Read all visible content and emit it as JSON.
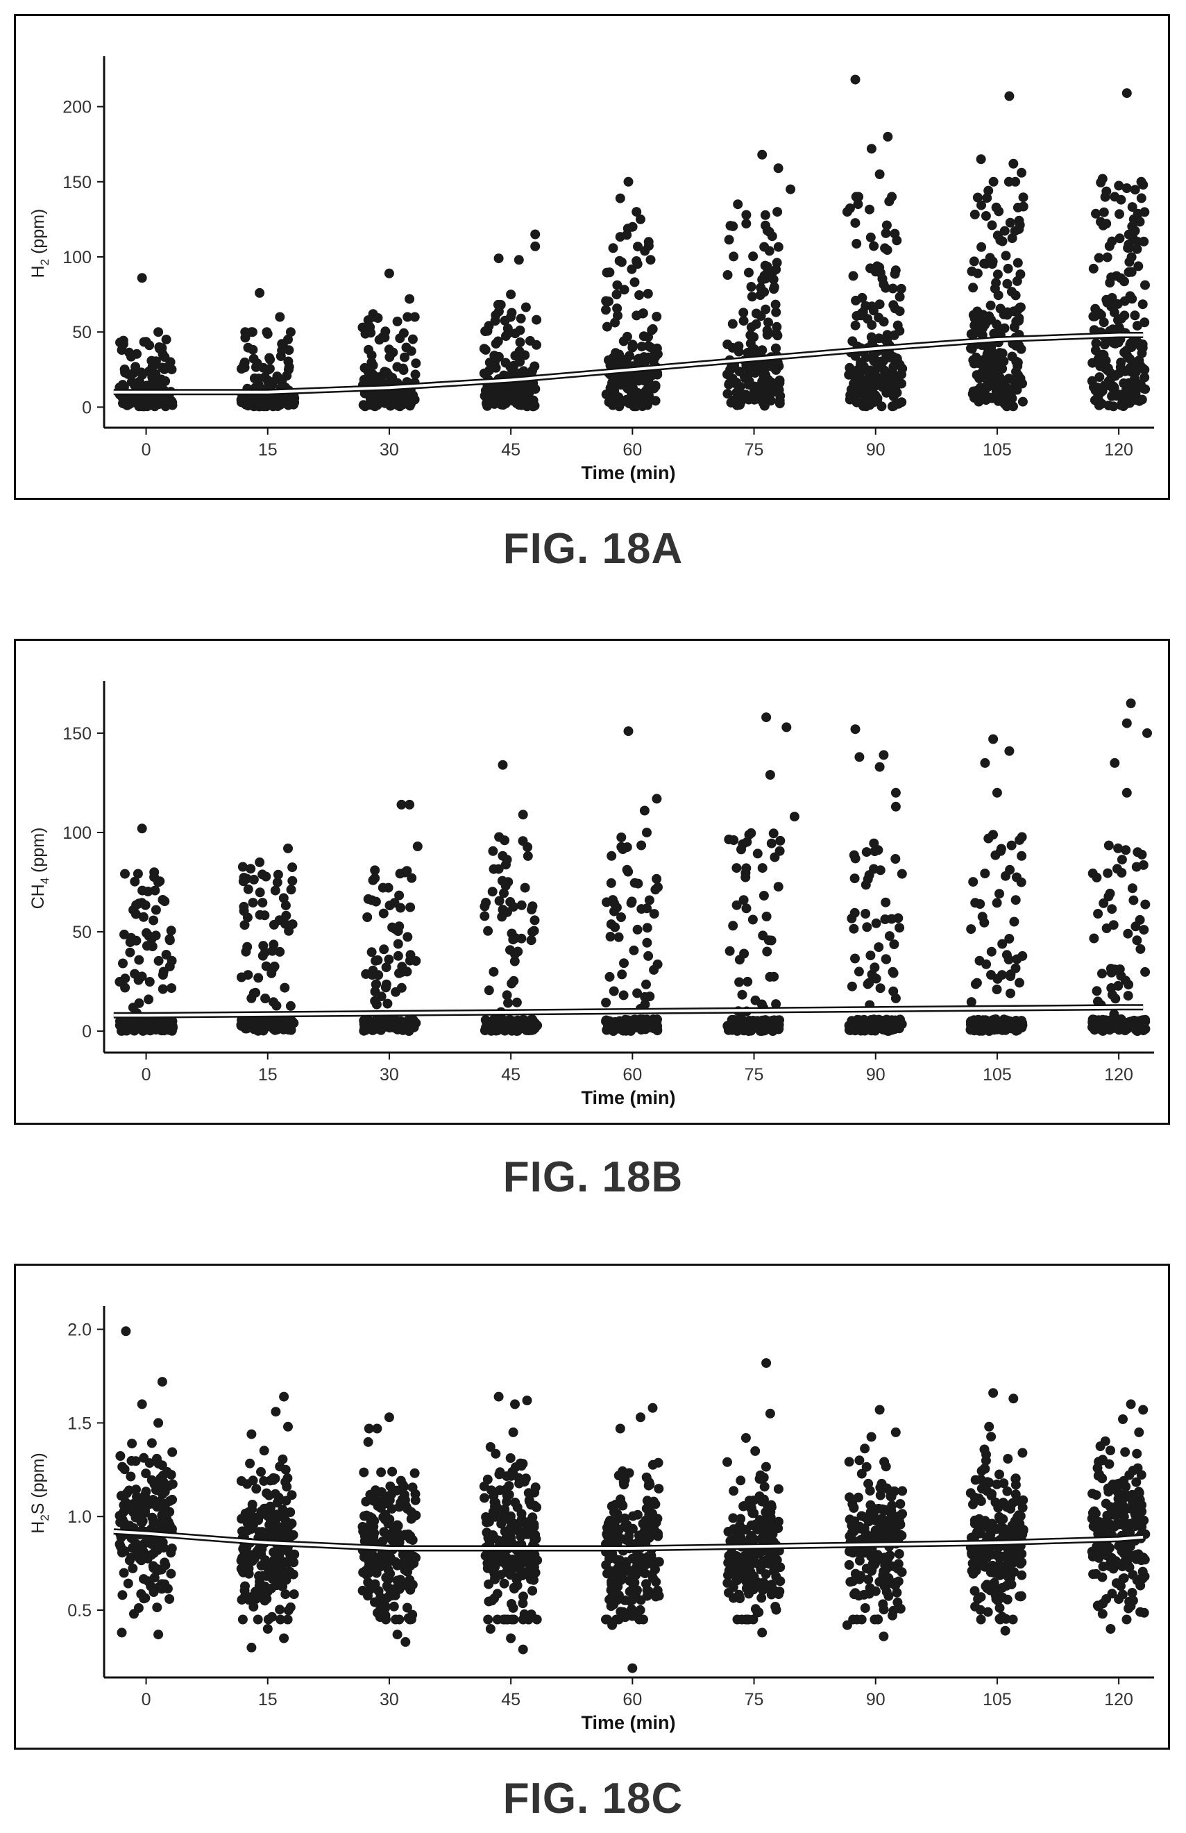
{
  "chart_data": [
    {
      "type": "scatter",
      "figure_label": "FIG. 18A",
      "title": "",
      "xlabel": "Time (min)",
      "ylabel_main": "H",
      "ylabel_sub": "2",
      "ylabel_rest": " (ppm)",
      "x_ticks": [
        0,
        15,
        30,
        45,
        60,
        75,
        90,
        105,
        120
      ],
      "y_ticks": [
        0,
        50,
        100,
        150,
        200
      ],
      "xlim": [
        -4.5,
        123.5
      ],
      "ylim": [
        -10,
        228
      ],
      "grid": false,
      "legend": "none",
      "point_color": "#1a1a1a",
      "trend": {
        "x": [
          -4,
          0,
          15,
          30,
          45,
          60,
          75,
          90,
          105,
          120,
          123
        ],
        "y": [
          10,
          10,
          10,
          13,
          18,
          25,
          32,
          39,
          45,
          48,
          48
        ]
      },
      "groups": [
        {
          "x": 0,
          "median": 10,
          "spread": 9,
          "n": 150,
          "max": 45,
          "outliers": [
            [
              -2.8,
              42
            ],
            [
              1.5,
              50
            ],
            [
              -0.5,
              86
            ],
            [
              3,
              30
            ],
            [
              -3,
              38
            ]
          ]
        },
        {
          "x": 15,
          "median": 12,
          "spread": 9,
          "n": 150,
          "max": 50,
          "outliers": [
            [
              14,
              76
            ],
            [
              16.5,
              60
            ],
            [
              13,
              50
            ],
            [
              17.5,
              45
            ]
          ]
        },
        {
          "x": 30,
          "median": 16,
          "spread": 12,
          "n": 150,
          "max": 60,
          "outliers": [
            [
              30,
              89
            ],
            [
              28,
              62
            ],
            [
              32.5,
              72
            ],
            [
              31,
              57
            ]
          ]
        },
        {
          "x": 45,
          "median": 20,
          "spread": 15,
          "n": 150,
          "max": 75,
          "outliers": [
            [
              43.5,
              99
            ],
            [
              46,
              98
            ],
            [
              48,
              115
            ],
            [
              48,
              107
            ],
            [
              45,
              75
            ]
          ]
        },
        {
          "x": 60,
          "median": 32,
          "spread": 30,
          "n": 170,
          "max": 120,
          "outliers": [
            [
              59.5,
              150
            ],
            [
              58.5,
              139
            ],
            [
              61,
              125
            ],
            [
              62,
              110
            ],
            [
              60.5,
              130
            ]
          ]
        },
        {
          "x": 75,
          "median": 38,
          "spread": 32,
          "n": 180,
          "max": 130,
          "outliers": [
            [
              76,
              168
            ],
            [
              78,
              159
            ],
            [
              79.5,
              145
            ],
            [
              73,
              135
            ]
          ]
        },
        {
          "x": 90,
          "median": 40,
          "spread": 35,
          "n": 190,
          "max": 140,
          "outliers": [
            [
              87.5,
              218
            ],
            [
              89.5,
              172
            ],
            [
              91.5,
              180
            ],
            [
              90.5,
              155
            ],
            [
              86.5,
              130
            ]
          ]
        },
        {
          "x": 105,
          "median": 50,
          "spread": 40,
          "n": 200,
          "max": 150,
          "outliers": [
            [
              106.5,
              207
            ],
            [
              103,
              165
            ],
            [
              108,
              156
            ],
            [
              107,
              162
            ]
          ]
        },
        {
          "x": 120,
          "median": 52,
          "spread": 40,
          "n": 200,
          "max": 150,
          "outliers": [
            [
              121,
              209
            ],
            [
              118,
              152
            ],
            [
              123,
              148
            ],
            [
              119.5,
              140
            ]
          ]
        }
      ]
    },
    {
      "type": "scatter",
      "figure_label": "FIG. 18B",
      "title": "",
      "xlabel": "Time (min)",
      "ylabel_main": "CH",
      "ylabel_sub": "4",
      "ylabel_rest": " (ppm)",
      "x_ticks": [
        0,
        15,
        30,
        45,
        60,
        75,
        90,
        105,
        120
      ],
      "y_ticks": [
        0,
        50,
        100,
        150
      ],
      "xlim": [
        -4.5,
        123.5
      ],
      "ylim": [
        -8,
        172
      ],
      "grid": false,
      "legend": "none",
      "point_color": "#1a1a1a",
      "trend": {
        "x": [
          -4,
          0,
          30,
          60,
          90,
          120,
          123
        ],
        "y": [
          8,
          8,
          9,
          10,
          11,
          12,
          12
        ]
      },
      "groups": [
        {
          "x": 0,
          "n_low": 120,
          "n_high": 55,
          "high_max": 80,
          "outliers": [
            [
              -0.5,
              102
            ],
            [
              1,
              80
            ]
          ]
        },
        {
          "x": 15,
          "n_low": 110,
          "n_high": 55,
          "high_max": 86,
          "outliers": [
            [
              17.5,
              92
            ],
            [
              14,
              85
            ]
          ]
        },
        {
          "x": 30,
          "n_low": 110,
          "n_high": 55,
          "high_max": 82,
          "outliers": [
            [
              31.5,
              114
            ],
            [
              32.5,
              114
            ],
            [
              33.5,
              93
            ]
          ]
        },
        {
          "x": 45,
          "n_low": 110,
          "n_high": 50,
          "high_max": 98,
          "outliers": [
            [
              44,
              134
            ],
            [
              46.5,
              109
            ]
          ]
        },
        {
          "x": 60,
          "n_low": 110,
          "n_high": 50,
          "high_max": 100,
          "outliers": [
            [
              59.5,
              151
            ],
            [
              63,
              117
            ],
            [
              61.5,
              111
            ]
          ]
        },
        {
          "x": 75,
          "n_low": 110,
          "n_high": 45,
          "high_max": 100,
          "outliers": [
            [
              76.5,
              158
            ],
            [
              79,
              153
            ],
            [
              77,
              129
            ],
            [
              80,
              108
            ]
          ]
        },
        {
          "x": 90,
          "n_low": 110,
          "n_high": 45,
          "high_max": 95,
          "outliers": [
            [
              87.5,
              152
            ],
            [
              88,
              138
            ],
            [
              90.5,
              133
            ],
            [
              91,
              139
            ],
            [
              92.5,
              120
            ],
            [
              92.5,
              113
            ]
          ]
        },
        {
          "x": 105,
          "n_low": 110,
          "n_high": 45,
          "high_max": 100,
          "outliers": [
            [
              104.5,
              147
            ],
            [
              106.5,
              141
            ],
            [
              103.5,
              135
            ],
            [
              105,
              120
            ]
          ]
        },
        {
          "x": 120,
          "n_low": 110,
          "n_high": 50,
          "high_max": 95,
          "outliers": [
            [
              121.5,
              165
            ],
            [
              121,
              155
            ],
            [
              123.5,
              150
            ],
            [
              119.5,
              135
            ],
            [
              121,
              120
            ]
          ]
        }
      ]
    },
    {
      "type": "scatter",
      "figure_label": "FIG. 18C",
      "title": "",
      "xlabel": "Time (min)",
      "ylabel_main": "H",
      "ylabel_sub": "2",
      "ylabel_rest": "S (ppm)",
      "x_ticks": [
        0,
        15,
        30,
        45,
        60,
        75,
        90,
        105,
        120
      ],
      "y_ticks": [
        0.5,
        1.0,
        1.5,
        2.0
      ],
      "y_tick_labels": [
        "0.5",
        "1.0",
        "1.5",
        "2.0"
      ],
      "xlim": [
        -4.5,
        123.5
      ],
      "ylim": [
        0.17,
        2.08
      ],
      "grid": false,
      "legend": "none",
      "point_color": "#1a1a1a",
      "trend": {
        "x": [
          -4,
          0,
          15,
          30,
          45,
          60,
          75,
          90,
          105,
          120,
          123
        ],
        "y": [
          0.92,
          0.91,
          0.86,
          0.83,
          0.83,
          0.83,
          0.84,
          0.85,
          0.86,
          0.88,
          0.89
        ]
      },
      "groups": [
        {
          "x": 0,
          "median": 0.95,
          "spread": 0.2,
          "n": 200,
          "outliers": [
            [
              -2.5,
              1.99
            ],
            [
              2,
              1.72
            ],
            [
              -0.5,
              1.6
            ],
            [
              1.5,
              1.5
            ],
            [
              -3,
              0.38
            ],
            [
              1.5,
              0.37
            ],
            [
              -1.5,
              0.48
            ]
          ]
        },
        {
          "x": 15,
          "median": 0.85,
          "spread": 0.2,
          "n": 200,
          "outliers": [
            [
              17,
              1.64
            ],
            [
              16,
              1.56
            ],
            [
              17.5,
              1.48
            ],
            [
              13,
              1.44
            ],
            [
              13,
              0.3
            ],
            [
              17,
              0.35
            ],
            [
              15,
              0.4
            ]
          ]
        },
        {
          "x": 30,
          "median": 0.83,
          "spread": 0.2,
          "n": 200,
          "outliers": [
            [
              30,
              1.53
            ],
            [
              27.5,
              1.47
            ],
            [
              32,
              0.33
            ],
            [
              31,
              0.37
            ],
            [
              28.5,
              1.47
            ]
          ]
        },
        {
          "x": 45,
          "median": 0.83,
          "spread": 0.22,
          "n": 200,
          "outliers": [
            [
              43.5,
              1.64
            ],
            [
              47,
              1.62
            ],
            [
              45.5,
              1.6
            ],
            [
              46.5,
              0.29
            ],
            [
              42.5,
              0.4
            ],
            [
              45,
              0.35
            ]
          ]
        },
        {
          "x": 60,
          "median": 0.8,
          "spread": 0.2,
          "n": 190,
          "outliers": [
            [
              62.5,
              1.58
            ],
            [
              61,
              1.53
            ],
            [
              58.5,
              1.47
            ],
            [
              60,
              0.19
            ],
            [
              57.5,
              0.42
            ]
          ]
        },
        {
          "x": 75,
          "median": 0.82,
          "spread": 0.2,
          "n": 190,
          "outliers": [
            [
              76.5,
              1.82
            ],
            [
              77,
              1.55
            ],
            [
              76,
              0.38
            ],
            [
              73.5,
              0.45
            ],
            [
              74,
              1.42
            ]
          ]
        },
        {
          "x": 90,
          "median": 0.85,
          "spread": 0.2,
          "n": 190,
          "outliers": [
            [
              90.5,
              1.57
            ],
            [
              86.5,
              0.42
            ],
            [
              91,
              0.36
            ],
            [
              88,
              1.3
            ]
          ]
        },
        {
          "x": 105,
          "median": 0.88,
          "spread": 0.2,
          "n": 200,
          "outliers": [
            [
              104.5,
              1.66
            ],
            [
              107,
              1.63
            ],
            [
              106,
              0.39
            ],
            [
              103,
              0.45
            ],
            [
              104,
              1.48
            ]
          ]
        },
        {
          "x": 120,
          "median": 0.9,
          "spread": 0.22,
          "n": 200,
          "outliers": [
            [
              121.5,
              1.6
            ],
            [
              123,
              1.57
            ],
            [
              122.5,
              1.45
            ],
            [
              119,
              0.4
            ],
            [
              118,
              0.48
            ],
            [
              120.5,
              1.52
            ]
          ]
        }
      ]
    }
  ]
}
